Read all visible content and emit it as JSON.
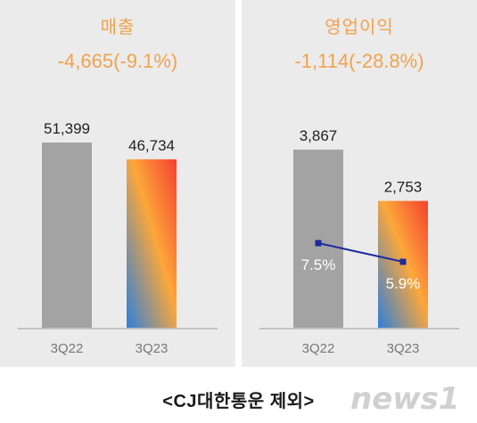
{
  "chart_data": [
    {
      "type": "bar",
      "title": "매출",
      "subtitle": "-4,665(-9.1%)",
      "categories": [
        "3Q22",
        "3Q23"
      ],
      "series": [
        {
          "values": [
            51399,
            46734
          ]
        }
      ],
      "data_labels": [
        "51,399",
        "46,734"
      ],
      "colors": [
        "#a3a3a3",
        "gradient:#f5402e-#fca73a-#2f7fd9"
      ]
    },
    {
      "type": "bar",
      "title": "영업이익",
      "subtitle": "-1,114(-28.8%)",
      "categories": [
        "3Q22",
        "3Q23"
      ],
      "series": [
        {
          "values": [
            3867,
            2753
          ]
        }
      ],
      "data_labels": [
        "3,867",
        "2,753"
      ],
      "overlay_line": {
        "name": "",
        "values": [
          7.5,
          5.9
        ],
        "labels": [
          "7.5%",
          "5.9%"
        ],
        "color": "#1f2a9c"
      },
      "colors": [
        "#a3a3a3",
        "gradient:#f5402e-#fca73a-#2f7fd9"
      ]
    }
  ],
  "footer": {
    "label": "<CJ대한통운 제외>"
  },
  "watermark": {
    "text": "news1"
  }
}
